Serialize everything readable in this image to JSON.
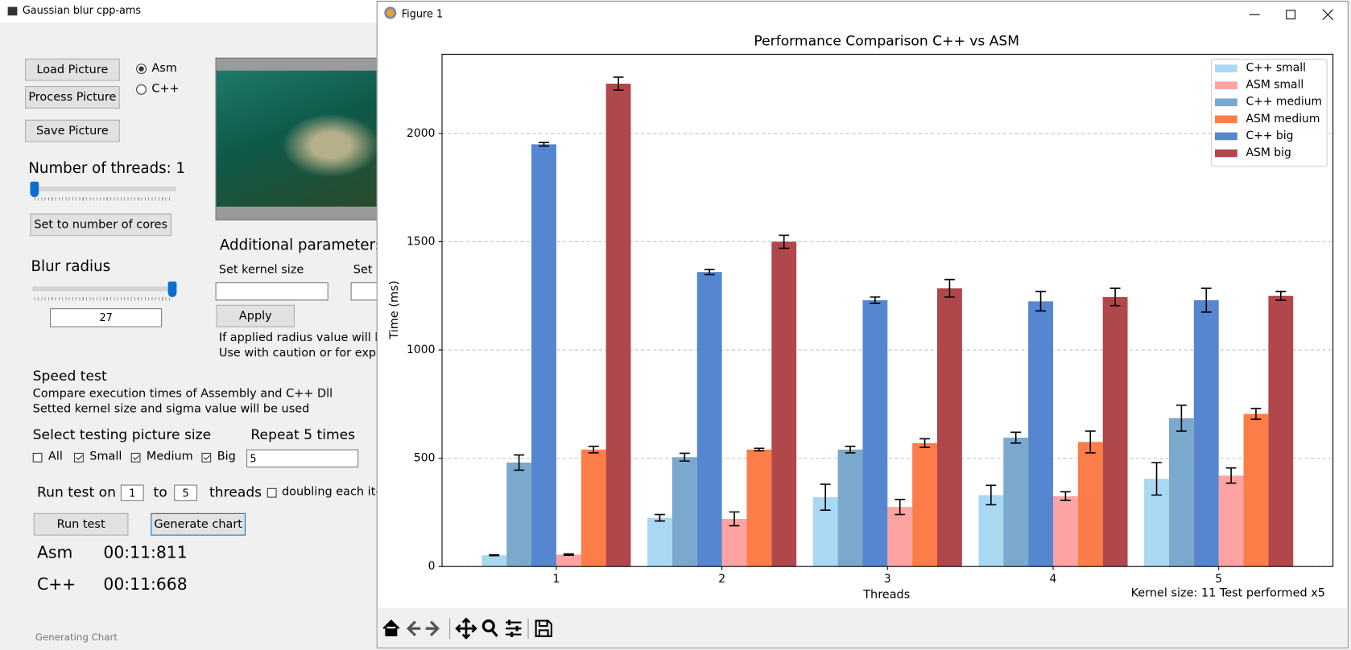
{
  "app": {
    "title": "Gaussian blur cpp-ams",
    "load_button": "Load Picture",
    "process_button": "Process Picture",
    "save_button": "Save Picture",
    "modes": [
      {
        "label": "Asm",
        "checked": true
      },
      {
        "label": "C++",
        "checked": false
      }
    ],
    "threads_label": "Number of threads: 1",
    "cores_button": "Set to number of cores",
    "blur_label": "Blur radius",
    "blur_input": "27",
    "additional_title": "Additional parameters",
    "kernel_label": "Set kernel size",
    "sigma_label": "Set s",
    "apply_button": "Apply",
    "note_lines": [
      "If applied radius value will be",
      "Use with caution or for experi"
    ],
    "speed_title": "Speed test",
    "speed_lines": [
      "Compare execution times of Assembly and C++ Dll",
      "Setted kernel size and sigma value will be used"
    ],
    "size_title": "Select testing picture size",
    "repeat_label": "Repeat 5 times",
    "sizes": [
      {
        "label": "All",
        "checked": false
      },
      {
        "label": "Small",
        "checked": true
      },
      {
        "label": "Medium",
        "checked": true
      },
      {
        "label": "Big",
        "checked": true
      }
    ],
    "repeat_input": "5",
    "run_on_label": "Run test on",
    "from_input": "1",
    "to_label": "to",
    "to_input": "5",
    "threads_word": "threads",
    "doubling": {
      "label": "doubling each ite",
      "checked": false
    },
    "run_button": "Run test",
    "chart_button": "Generate chart",
    "results": [
      {
        "label": "Asm",
        "time": "00:11:811"
      },
      {
        "label": "C++",
        "time": "00:11:668"
      }
    ],
    "status": "Generating Chart"
  },
  "figure": {
    "title": "Figure 1"
  },
  "chart_data": {
    "type": "bar",
    "title": "Performance Comparison C++ vs ASM",
    "x_label": "Threads",
    "y_label": "Time (ms)",
    "annotation": "Kernel size: 11 Test performed x5",
    "categories": [
      "1",
      "2",
      "3",
      "4",
      "5"
    ],
    "ylim": [
      0,
      2366
    ],
    "yticks": [
      0,
      500,
      1000,
      1500,
      2000
    ],
    "grid": true,
    "legend": "upper right",
    "series": [
      {
        "name": "C++ small",
        "color": "#a9d8f2",
        "values": [
          52,
          225,
          320,
          330,
          405
        ],
        "errors": [
          2,
          15,
          60,
          45,
          75
        ]
      },
      {
        "name": "ASM small",
        "color": "#fea3a3",
        "values": [
          55,
          220,
          275,
          325,
          420
        ],
        "errors": [
          3,
          32,
          35,
          20,
          35
        ]
      },
      {
        "name": "C++ medium",
        "color": "#7ba8cd",
        "values": [
          480,
          505,
          540,
          595,
          685
        ],
        "errors": [
          35,
          18,
          15,
          25,
          60
        ]
      },
      {
        "name": "ASM medium",
        "color": "#fd7d48",
        "values": [
          540,
          540,
          570,
          575,
          705
        ],
        "errors": [
          15,
          6,
          20,
          50,
          25
        ]
      },
      {
        "name": "C++ big",
        "color": "#5686d0",
        "values": [
          1950,
          1360,
          1230,
          1225,
          1230
        ],
        "errors": [
          8,
          12,
          15,
          45,
          55
        ]
      },
      {
        "name": "ASM big",
        "color": "#b0474b",
        "values": [
          2230,
          1500,
          1285,
          1245,
          1250
        ],
        "errors": [
          30,
          30,
          40,
          40,
          20
        ]
      }
    ]
  }
}
